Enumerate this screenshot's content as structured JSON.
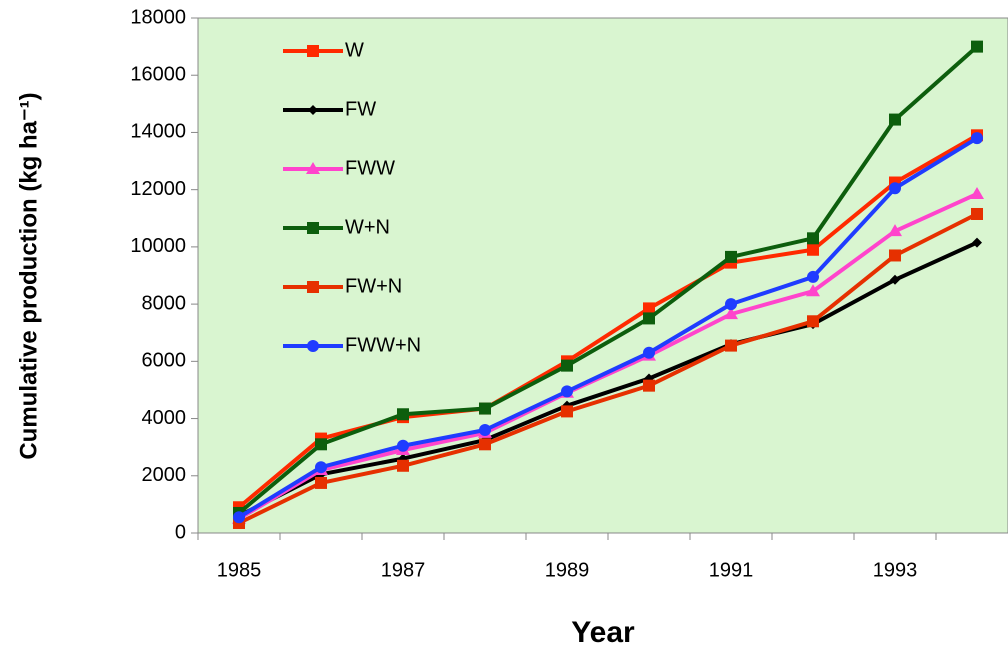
{
  "chart_data": {
    "type": "line",
    "xlabel": "Year",
    "ylabel": "Cumulative production (kg ha⁻¹)",
    "categories": [
      "1985",
      null,
      "1987",
      null,
      "1989",
      null,
      "1991",
      null,
      "1993",
      null
    ],
    "series": [
      {
        "name": "W",
        "color": "#ff2a00",
        "marker": "square",
        "values": [
          900,
          3300,
          4050,
          4350,
          6000,
          7850,
          9450,
          9900,
          12250,
          13900
        ]
      },
      {
        "name": "FW",
        "color": "#000000",
        "marker": "diamond",
        "values": [
          600,
          2050,
          2600,
          3250,
          4450,
          5400,
          6600,
          7300,
          8850,
          10150
        ]
      },
      {
        "name": "FWW",
        "color": "#ff44cc",
        "marker": "triangle",
        "values": [
          500,
          2200,
          2900,
          3500,
          4900,
          6200,
          7650,
          8450,
          10550,
          11850
        ]
      },
      {
        "name": "W+N",
        "color": "#0d5e0d",
        "marker": "square",
        "values": [
          700,
          3100,
          4150,
          4350,
          5850,
          7500,
          9650,
          10300,
          14450,
          17000
        ]
      },
      {
        "name": "FW+N",
        "color": "#e63000",
        "marker": "square",
        "values": [
          350,
          1750,
          2350,
          3100,
          4250,
          5150,
          6550,
          7400,
          9700,
          11150
        ]
      },
      {
        "name": "FWW+N",
        "color": "#1f3cff",
        "marker": "circle",
        "values": [
          550,
          2300,
          3050,
          3600,
          4950,
          6300,
          8000,
          8950,
          12050,
          13800
        ]
      }
    ],
    "ylim": [
      0,
      18000
    ],
    "yticks": [
      0,
      2000,
      4000,
      6000,
      8000,
      10000,
      12000,
      14000,
      16000,
      18000
    ],
    "grid": false,
    "legend": "upper left",
    "background": "#d9f5d0"
  }
}
